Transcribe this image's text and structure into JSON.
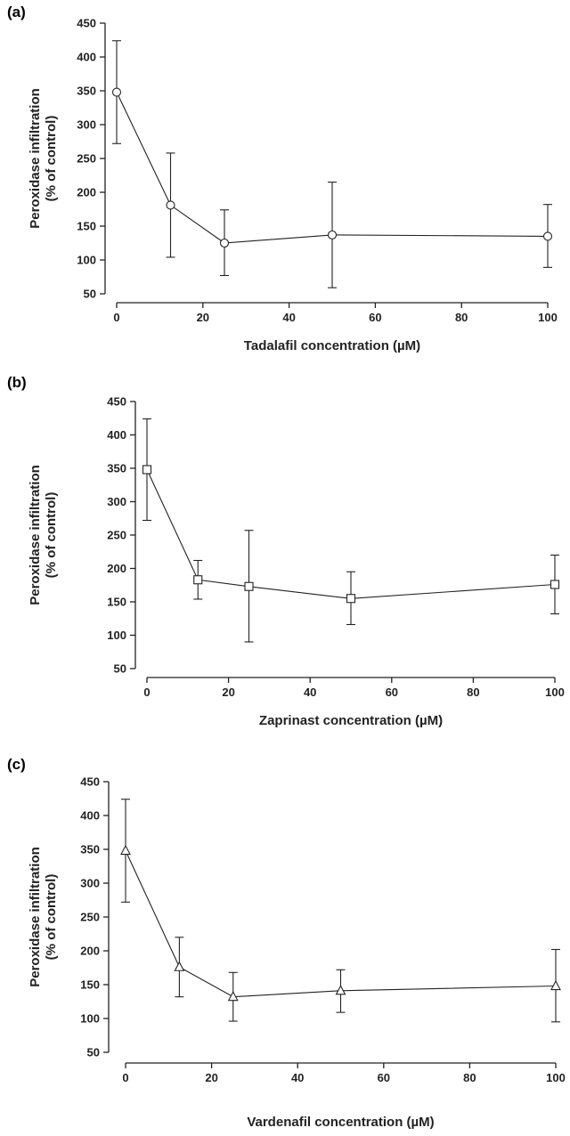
{
  "chart_data": [
    {
      "type": "line",
      "panel_label": "(a)",
      "xlabel": "Tadalafil concentration (µM)",
      "ylabel_line1": "Peroxidase infiltration",
      "ylabel_line2": "(% of control)",
      "xlim": [
        0,
        100
      ],
      "ylim": [
        50,
        450
      ],
      "xticks": [
        0,
        20,
        40,
        60,
        80,
        100
      ],
      "yticks": [
        50,
        100,
        150,
        200,
        250,
        300,
        350,
        400,
        450
      ],
      "marker": "circle",
      "series": [
        {
          "x": [
            0,
            12.5,
            25,
            50,
            100
          ],
          "y": [
            348,
            181,
            125,
            137,
            135
          ],
          "err_upper": [
            424,
            258,
            174,
            215,
            182
          ],
          "err_lower": [
            272,
            104,
            77,
            59,
            89
          ]
        }
      ]
    },
    {
      "type": "line",
      "panel_label": "(b)",
      "xlabel": "Zaprinast concentration (µM)",
      "ylabel_line1": "Peroxidase infiltration",
      "ylabel_line2": "(% of control)",
      "xlim": [
        0,
        100
      ],
      "ylim": [
        50,
        450
      ],
      "xticks": [
        0,
        20,
        40,
        60,
        80,
        100
      ],
      "yticks": [
        50,
        100,
        150,
        200,
        250,
        300,
        350,
        400,
        450
      ],
      "marker": "square",
      "series": [
        {
          "x": [
            0,
            12.5,
            25,
            50,
            100
          ],
          "y": [
            348,
            183,
            173,
            155,
            176
          ],
          "err_upper": [
            424,
            212,
            257,
            195,
            220
          ],
          "err_lower": [
            272,
            154,
            90,
            116,
            132
          ]
        }
      ]
    },
    {
      "type": "line",
      "panel_label": "(c)",
      "xlabel": "Vardenafil concentration (µM)",
      "ylabel_line1": "Peroxidase infiltration",
      "ylabel_line2": "(% of control)",
      "xlim": [
        0,
        100
      ],
      "ylim": [
        50,
        450
      ],
      "xticks": [
        0,
        20,
        40,
        60,
        80,
        100
      ],
      "yticks": [
        50,
        100,
        150,
        200,
        250,
        300,
        350,
        400,
        450
      ],
      "marker": "triangle",
      "series": [
        {
          "x": [
            0,
            12.5,
            25,
            50,
            100
          ],
          "y": [
            348,
            176,
            132,
            141,
            148
          ],
          "err_upper": [
            424,
            220,
            168,
            172,
            202
          ],
          "err_lower": [
            272,
            132,
            96,
            109,
            95
          ]
        }
      ]
    }
  ]
}
